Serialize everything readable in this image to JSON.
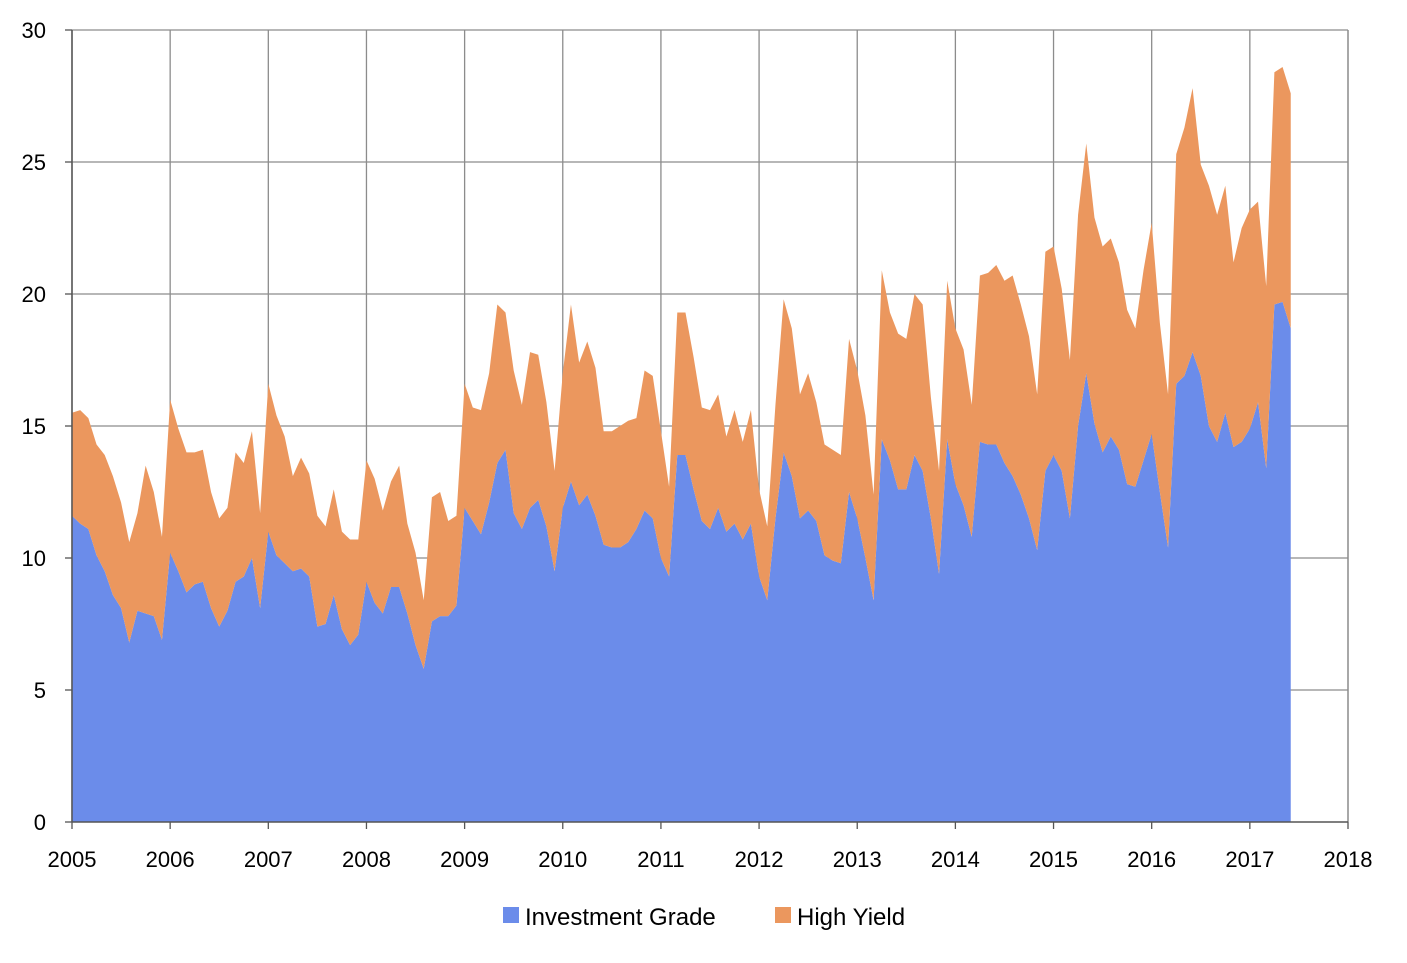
{
  "chart_data": {
    "type": "area",
    "stacked": true,
    "title": "",
    "xlabel": "",
    "ylabel": "",
    "xlim": [
      2005,
      2018
    ],
    "ylim": [
      0,
      30
    ],
    "x_ticks": [
      "2005",
      "2006",
      "2007",
      "2008",
      "2009",
      "2010",
      "2011",
      "2012",
      "2013",
      "2014",
      "2015",
      "2016",
      "2017",
      "2018"
    ],
    "y_ticks": [
      "0",
      "5",
      "10",
      "15",
      "20",
      "25",
      "30"
    ],
    "grid": true,
    "legend_position": "bottom",
    "x_start": "2005-01",
    "x_step": "month",
    "series": [
      {
        "name": "Investment Grade",
        "color": "#6b8cea",
        "values": [
          11.6,
          11.3,
          11.1,
          10.1,
          9.5,
          8.6,
          8.1,
          6.8,
          8.0,
          7.9,
          7.8,
          6.9,
          10.2,
          9.5,
          8.7,
          9.0,
          9.1,
          8.1,
          7.4,
          8.0,
          9.1,
          9.3,
          10.0,
          8.1,
          11.0,
          10.1,
          9.8,
          9.5,
          9.6,
          9.3,
          7.4,
          7.5,
          8.6,
          7.3,
          6.7,
          7.1,
          9.1,
          8.3,
          7.9,
          8.9,
          8.9,
          7.9,
          6.7,
          5.8,
          7.6,
          7.8,
          7.8,
          8.2,
          11.9,
          11.4,
          10.9,
          12.1,
          13.6,
          14.1,
          11.7,
          11.1,
          11.9,
          12.2,
          11.2,
          9.5,
          11.9,
          12.9,
          12.0,
          12.4,
          11.6,
          10.5,
          10.4,
          10.4,
          10.6,
          11.1,
          11.8,
          11.5,
          10.0,
          9.3,
          13.9,
          13.9,
          12.6,
          11.4,
          11.1,
          11.9,
          11.0,
          11.3,
          10.7,
          11.3,
          9.3,
          8.4,
          11.5,
          14.0,
          13.1,
          11.5,
          11.8,
          11.4,
          10.1,
          9.9,
          9.8,
          12.5,
          11.5,
          10.0,
          8.4,
          14.5,
          13.7,
          12.6,
          12.6,
          13.9,
          13.3,
          11.5,
          9.4,
          14.5,
          12.8,
          12.0,
          10.8,
          14.4,
          14.3,
          14.3,
          13.6,
          13.1,
          12.4,
          11.5,
          10.3,
          13.3,
          13.9,
          13.3,
          11.5,
          15.0,
          17.0,
          15.1,
          14.0,
          14.6,
          14.1,
          12.8,
          12.7,
          13.7,
          14.7,
          12.5,
          10.4,
          16.6,
          16.9,
          17.8,
          16.9,
          15.0,
          14.4,
          15.5,
          14.2,
          14.4,
          14.9,
          15.9,
          13.4,
          19.6,
          19.7,
          18.7
        ]
      },
      {
        "name": "High Yield",
        "color": "#eb975e",
        "values": [
          3.9,
          4.3,
          4.2,
          4.2,
          4.4,
          4.5,
          4.0,
          3.8,
          3.7,
          5.6,
          4.7,
          3.9,
          5.8,
          5.4,
          5.3,
          5.0,
          5.0,
          4.4,
          4.1,
          3.9,
          4.9,
          4.3,
          4.8,
          3.6,
          5.6,
          5.3,
          4.8,
          3.6,
          4.2,
          3.9,
          4.2,
          3.7,
          4.0,
          3.7,
          4.0,
          3.6,
          4.6,
          4.7,
          3.9,
          4.0,
          4.6,
          3.4,
          3.5,
          2.6,
          4.7,
          4.7,
          3.6,
          3.4,
          4.7,
          4.3,
          4.7,
          4.9,
          6.0,
          5.2,
          5.4,
          4.7,
          5.9,
          5.5,
          4.7,
          3.8,
          5.1,
          6.7,
          5.4,
          5.8,
          5.6,
          4.3,
          4.4,
          4.6,
          4.6,
          4.2,
          5.3,
          5.4,
          4.8,
          3.4,
          5.4,
          5.4,
          5.0,
          4.3,
          4.5,
          4.3,
          3.6,
          4.3,
          3.7,
          4.3,
          3.3,
          2.8,
          4.3,
          5.8,
          5.6,
          4.7,
          5.2,
          4.5,
          4.2,
          4.2,
          4.1,
          5.8,
          5.6,
          5.4,
          4.0,
          6.4,
          5.6,
          5.9,
          5.7,
          6.1,
          6.3,
          4.6,
          3.9,
          6.0,
          5.9,
          5.9,
          5.0,
          6.3,
          6.5,
          6.8,
          6.9,
          7.6,
          7.2,
          6.9,
          5.9,
          8.3,
          7.9,
          6.9,
          6.0,
          8.0,
          8.7,
          7.8,
          7.8,
          7.5,
          7.1,
          6.6,
          6.0,
          7.2,
          8.0,
          6.4,
          5.8,
          8.7,
          9.4,
          10.0,
          8.0,
          9.1,
          8.6,
          8.6,
          7.0,
          8.1,
          8.3,
          7.6,
          6.9,
          8.8,
          8.9,
          8.9
        ]
      }
    ]
  }
}
